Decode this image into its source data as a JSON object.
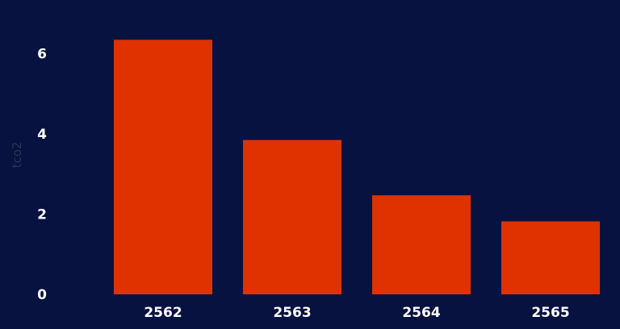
{
  "chart_data": {
    "type": "bar",
    "categories": [
      "2562",
      "2563",
      "2564",
      "2565"
    ],
    "values": [
      6.35,
      3.85,
      2.47,
      1.82
    ],
    "ylabel": "tco2",
    "ylim": [
      0,
      7
    ],
    "yticks": [
      "0",
      "2",
      "4",
      "6"
    ],
    "grid": false,
    "legend": "none",
    "colors": {
      "background": "#071240",
      "bar": "#e03200",
      "tick_text": "#ffffff",
      "ylabel_text": "#2a3350"
    }
  }
}
